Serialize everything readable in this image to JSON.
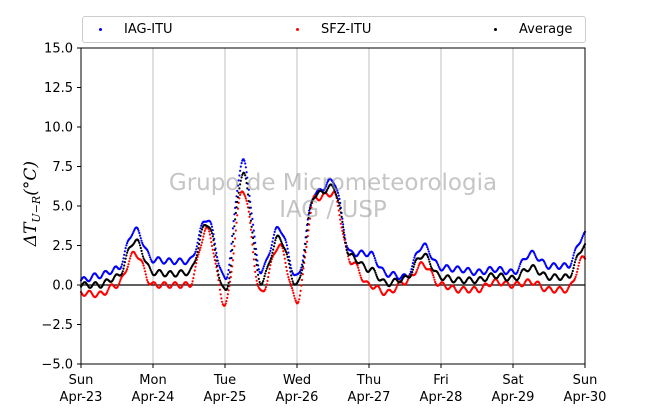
{
  "watermark": {
    "line1": "Grupo de Micrometeorologia",
    "line2": "IAG / USP"
  },
  "chart_data": {
    "type": "scatter",
    "ylabel": "ΔT",
    "ylabel_sub": "U−R",
    "ylabel_unit": "(°C)",
    "ylim": [
      -5.0,
      15.0
    ],
    "yticks": [
      "−5.0",
      "−2.5",
      "0.0",
      "2.5",
      "5.0",
      "7.5",
      "10.0",
      "12.5",
      "15.0"
    ],
    "ytick_values": [
      -5.0,
      -2.5,
      0.0,
      2.5,
      5.0,
      7.5,
      10.0,
      12.5,
      15.0
    ],
    "xlim": [
      "2023-04-23",
      "2023-04-30"
    ],
    "xticks": [
      {
        "date": "2023-04-23",
        "day": "Sun",
        "month": "Apr-23"
      },
      {
        "date": "2023-04-24",
        "day": "Mon",
        "month": "Apr-24"
      },
      {
        "date": "2023-04-25",
        "day": "Tue",
        "month": "Apr-25"
      },
      {
        "date": "2023-04-26",
        "day": "Wed",
        "month": "Apr-26"
      },
      {
        "date": "2023-04-27",
        "day": "Thu",
        "month": "Apr-27"
      },
      {
        "date": "2023-04-28",
        "day": "Fri",
        "month": "Apr-28"
      },
      {
        "date": "2023-04-29",
        "day": "Sat",
        "month": "Apr-29"
      },
      {
        "date": "2023-04-30",
        "day": "Sun",
        "month": "Apr-30"
      }
    ],
    "grid": "vertical",
    "zero_line": true,
    "legend": "top",
    "x": [
      "Apr-23 00h",
      "Apr-23 06h",
      "Apr-23 12h",
      "Apr-23 18h",
      "Apr-24 00h",
      "Apr-24 06h",
      "Apr-24 12h",
      "Apr-24 18h",
      "Apr-25 00h",
      "Apr-25 06h",
      "Apr-25 12h",
      "Apr-25 18h",
      "Apr-26 00h",
      "Apr-26 06h",
      "Apr-26 12h",
      "Apr-26 18h",
      "Apr-27 00h",
      "Apr-27 06h",
      "Apr-27 12h",
      "Apr-27 18h",
      "Apr-28 00h",
      "Apr-28 06h",
      "Apr-28 12h",
      "Apr-28 18h",
      "Apr-29 00h",
      "Apr-29 06h",
      "Apr-29 12h",
      "Apr-29 18h",
      "Apr-30 00h"
    ],
    "series": [
      {
        "name": "IAG-ITU",
        "color": "#0000ff",
        "values": [
          0.3,
          0.6,
          1.0,
          3.5,
          1.6,
          1.5,
          1.5,
          4.2,
          0.4,
          7.8,
          0.9,
          3.6,
          0.5,
          5.8,
          6.6,
          2.0,
          2.0,
          0.7,
          0.5,
          2.5,
          1.1,
          1.0,
          0.8,
          1.0,
          0.8,
          2.0,
          1.2,
          1.2,
          3.2
        ]
      },
      {
        "name": "SFZ-ITU",
        "color": "#ff0000",
        "values": [
          -0.5,
          -0.6,
          0.0,
          2.0,
          0.0,
          0.0,
          0.0,
          3.5,
          -1.2,
          6.0,
          -0.5,
          2.5,
          -1.0,
          5.5,
          5.8,
          1.5,
          0.0,
          -0.5,
          0.2,
          1.3,
          0.0,
          -0.3,
          -0.3,
          0.2,
          0.0,
          0.2,
          -0.3,
          -0.3,
          1.8
        ]
      },
      {
        "name": "Average",
        "color": "#000000",
        "values": [
          0.0,
          0.0,
          0.5,
          2.8,
          0.8,
          0.7,
          0.8,
          3.9,
          -0.4,
          7.0,
          0.2,
          3.0,
          0.0,
          5.7,
          6.2,
          1.8,
          1.0,
          0.1,
          0.4,
          1.9,
          0.5,
          0.3,
          0.3,
          0.6,
          0.4,
          1.1,
          0.5,
          0.5,
          2.5
        ]
      }
    ]
  }
}
